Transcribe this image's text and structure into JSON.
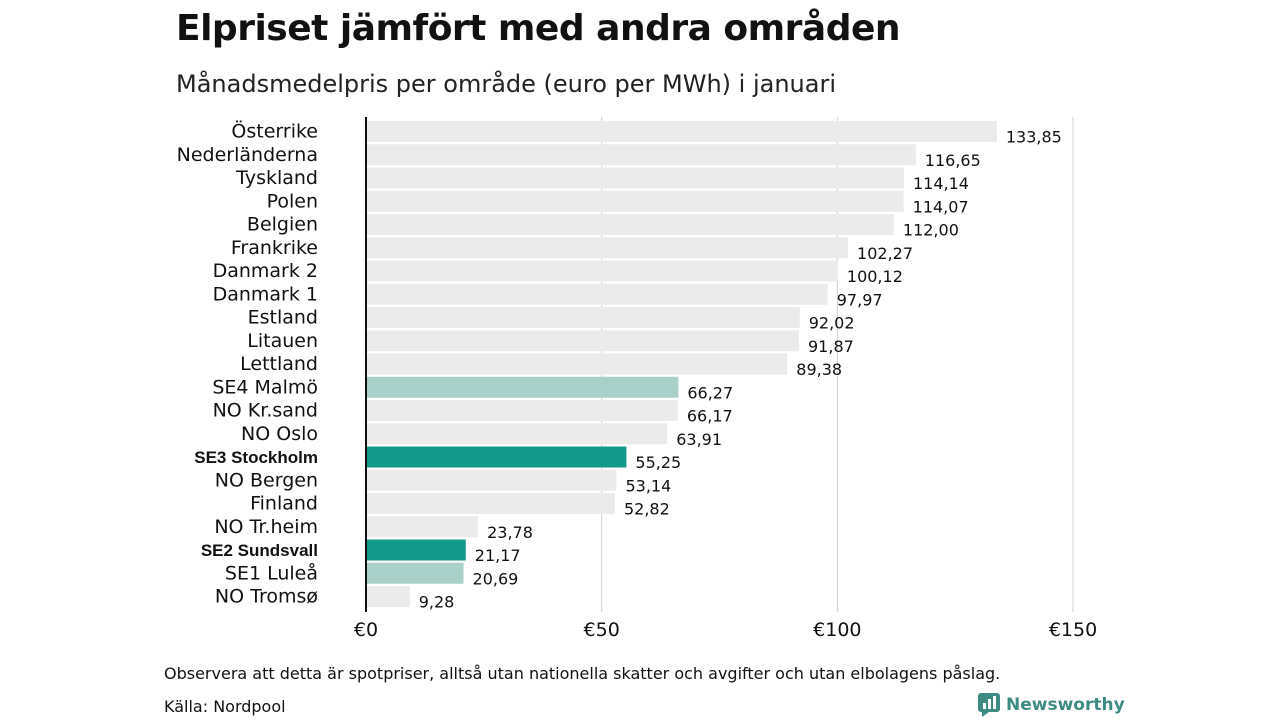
{
  "header": {
    "title": "Elpriset jämfört med andra områden",
    "subtitle": "Månadsmedelpris per område (euro per MWh) i januari"
  },
  "footer": {
    "note": "Observera att detta är spotpriser, alltså utan nationella skatter och avgifter och utan elbolagens påslag.",
    "source": "Källa: Nordpool",
    "brand": "Newsworthy"
  },
  "colors": {
    "default": "#ebebeb",
    "highlight": "#12998a",
    "light_highlight": "#a8d0c8",
    "grid": "#cfcfcf",
    "axis": "#111111",
    "brand": "#3d8c84"
  },
  "chart_data": {
    "type": "bar",
    "orientation": "horizontal",
    "xlim": [
      0,
      150
    ],
    "grid": true,
    "ticks": [
      0,
      50,
      100,
      150
    ],
    "tick_labels": [
      "€0",
      "€50",
      "€100",
      "€150"
    ],
    "categories": [
      "Österrike",
      "Nederländerna",
      "Tyskland",
      "Polen",
      "Belgien",
      "Frankrike",
      "Danmark  2",
      "Danmark  1",
      "Estland",
      "Litauen",
      "Lettland",
      "SE4  Malmö",
      "NO Kr.sand",
      "NO Oslo",
      "SE3 Stockholm",
      "NO Bergen",
      "Finland",
      "NO Tr.heim",
      "SE2 Sundsvall",
      "SE1  Luleå",
      "NO Tromsø"
    ],
    "values": [
      133.85,
      116.65,
      114.14,
      114.07,
      112.0,
      102.27,
      100.12,
      97.97,
      92.02,
      91.87,
      89.38,
      66.27,
      66.17,
      63.91,
      55.25,
      53.14,
      52.82,
      23.78,
      21.17,
      20.69,
      9.28
    ],
    "value_labels": [
      "133,85",
      "116,65",
      "114,14",
      "114,07",
      "112,00",
      "102,27",
      "100,12",
      "97,97",
      "92,02",
      "91,87",
      "89,38",
      "66,27",
      "66,17",
      "63,91",
      "55,25",
      "53,14",
      "52,82",
      "23,78",
      "21,17",
      "20,69",
      "9,28"
    ],
    "highlight": [
      "none",
      "none",
      "none",
      "none",
      "none",
      "none",
      "none",
      "none",
      "none",
      "none",
      "none",
      "light",
      "none",
      "none",
      "strong",
      "none",
      "none",
      "none",
      "strong",
      "light",
      "none"
    ]
  }
}
